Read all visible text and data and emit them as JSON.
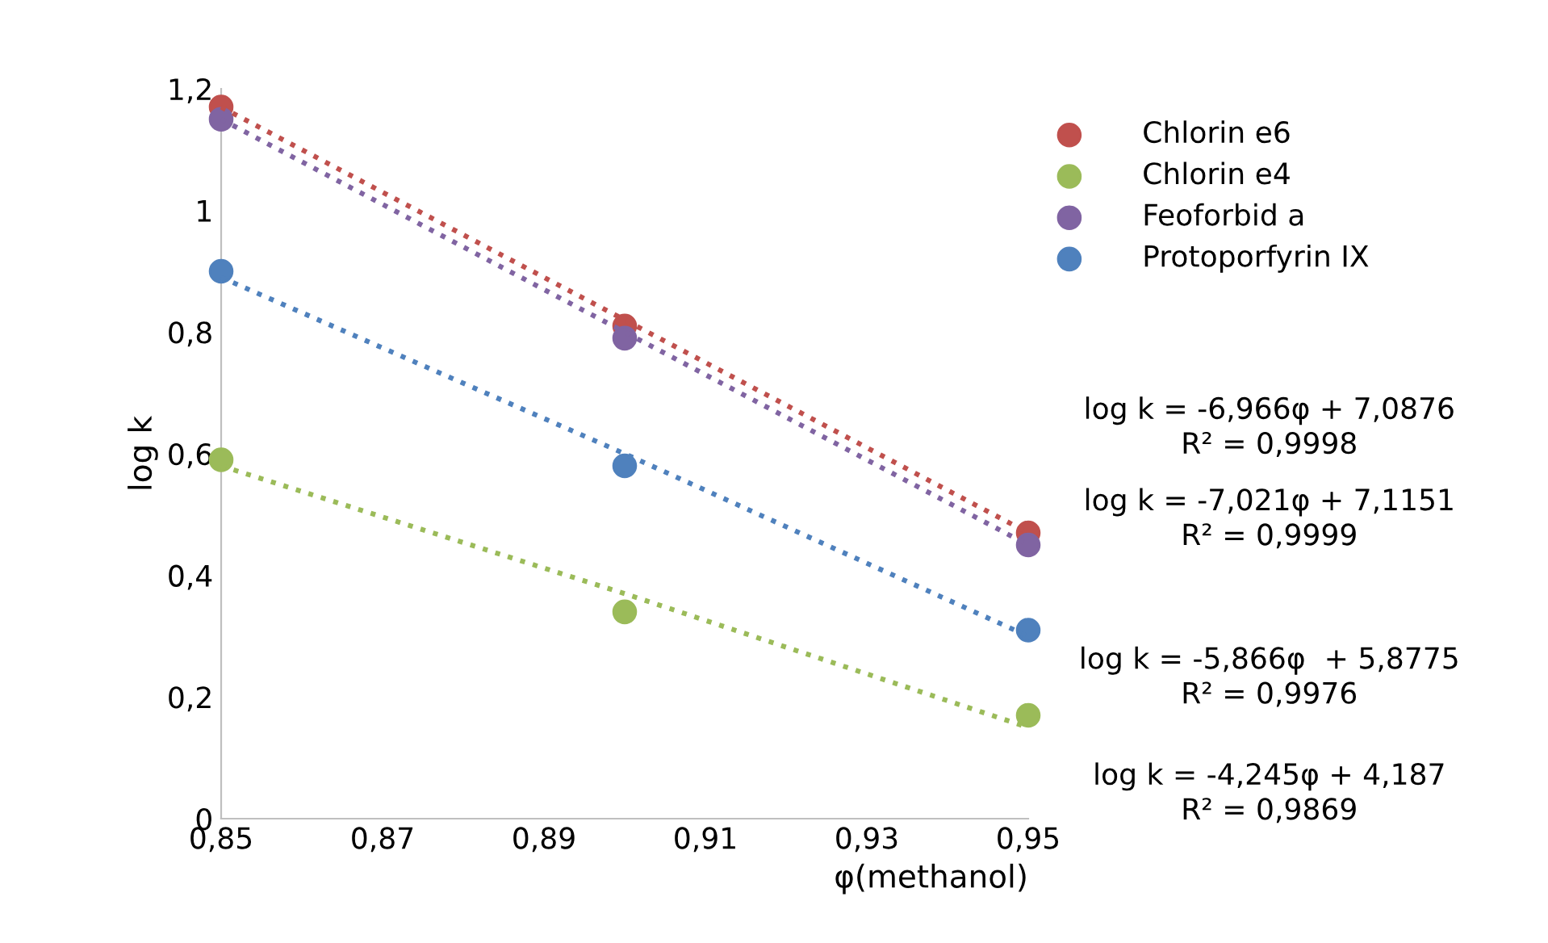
{
  "chart_data": {
    "type": "scatter",
    "xlabel": "φ(methanol)",
    "ylabel": "log k",
    "x": [
      0.85,
      0.9,
      0.95
    ],
    "series": [
      {
        "name": "Chlorin e6",
        "color": "#c0504d",
        "values": [
          1.17,
          0.81,
          0.47
        ]
      },
      {
        "name": "Chlorin e4",
        "color": "#9bbb59",
        "values": [
          0.59,
          0.34,
          0.17
        ]
      },
      {
        "name": "Feoforbid a",
        "color": "#8064a2",
        "values": [
          1.15,
          0.79,
          0.45
        ]
      },
      {
        "name": "Protoporfyrin IX",
        "color": "#4f81bd",
        "values": [
          0.9,
          0.58,
          0.31
        ]
      },
      {
        "type": "line",
        "line_style": "dotted",
        "marker": "none",
        "color": "#c0504d",
        "values": [
          1.17,
          0.82,
          0.47
        ]
      },
      {
        "type": "line",
        "line_style": "dotted",
        "marker": "none",
        "color": "#9bbb59",
        "values": [
          0.58,
          0.37,
          0.15
        ]
      },
      {
        "type": "line",
        "line_style": "dotted",
        "marker": "none",
        "color": "#8064a2",
        "values": [
          1.15,
          0.8,
          0.45
        ]
      },
      {
        "type": "line",
        "line_style": "dotted",
        "marker": "none",
        "color": "#4f81bd",
        "values": [
          0.89,
          0.6,
          0.3
        ]
      }
    ],
    "xlim": [
      0.85,
      0.95
    ],
    "xticks": [
      {
        "value": 0.85,
        "label": "0,85"
      },
      {
        "value": 0.87,
        "label": "0,87"
      },
      {
        "value": 0.89,
        "label": "0,89"
      },
      {
        "value": 0.91,
        "label": "0,91"
      },
      {
        "value": 0.93,
        "label": "0,93"
      },
      {
        "value": 0.95,
        "label": "0,95"
      }
    ],
    "ylim": [
      0,
      1.2
    ],
    "yticks": [
      0,
      {
        "value": 0.2,
        "label": "0,2"
      },
      {
        "value": 0.4,
        "label": "0,4"
      },
      {
        "value": 0.6,
        "label": "0,6"
      },
      {
        "value": 0.8,
        "label": "0,8"
      },
      1,
      {
        "value": 1.2,
        "label": "1,2"
      }
    ],
    "marker": "circle",
    "grid": false,
    "legend": "right",
    "annotations": [
      "log k = -6,966φ + 7,0876\nR² = 0,9998",
      "log k = -7,021φ + 7,1151\nR² = 0,9999",
      "log k = -5,866φ  + 5,8775\nR² = 0,9976",
      "log k = -4,245φ + 4,187\nR² = 0,9869"
    ]
  }
}
